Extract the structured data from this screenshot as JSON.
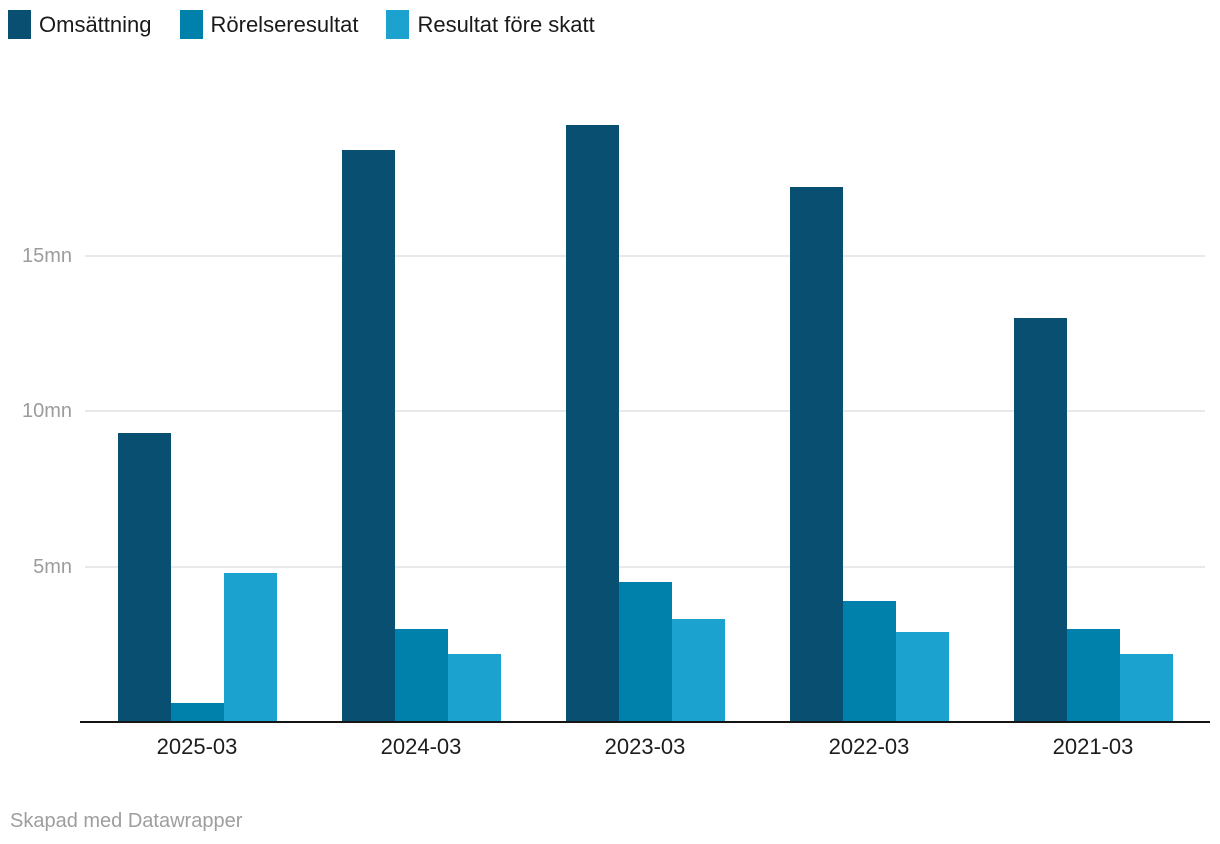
{
  "footer": {
    "credit": "Skapad med Datawrapper"
  },
  "colors": {
    "background": "#ffffff",
    "gridline": "#e9e9e9",
    "axis_line": "#151515",
    "tick_label": "#9c9c9c",
    "category_label": "#1d1d1d",
    "legend_label": "#1a1a1a",
    "footer_text": "#9e9e9e"
  },
  "chart_data": {
    "type": "bar",
    "title": "",
    "xlabel": "",
    "ylabel": "",
    "unit": "mn",
    "grid": "horizontal",
    "legend_position": "top",
    "ylim": [
      0,
      20
    ],
    "categories": [
      "2025-03",
      "2024-03",
      "2023-03",
      "2022-03",
      "2021-03"
    ],
    "series": [
      {
        "name": "Omsättning",
        "color": "#094F72",
        "values": [
          9.3,
          18.4,
          19.2,
          17.2,
          13.0
        ]
      },
      {
        "name": "Rörelseresultat",
        "color": "#0081AC",
        "values": [
          0.6,
          3.0,
          4.5,
          3.9,
          3.0
        ]
      },
      {
        "name": "Resultat före skatt",
        "color": "#1CA2CE",
        "values": [
          4.8,
          2.2,
          3.3,
          2.9,
          2.2
        ]
      }
    ],
    "y_ticks": [
      {
        "value": 5,
        "label": "5mn"
      },
      {
        "value": 10,
        "label": "10mn"
      },
      {
        "value": 15,
        "label": "15mn"
      }
    ]
  }
}
